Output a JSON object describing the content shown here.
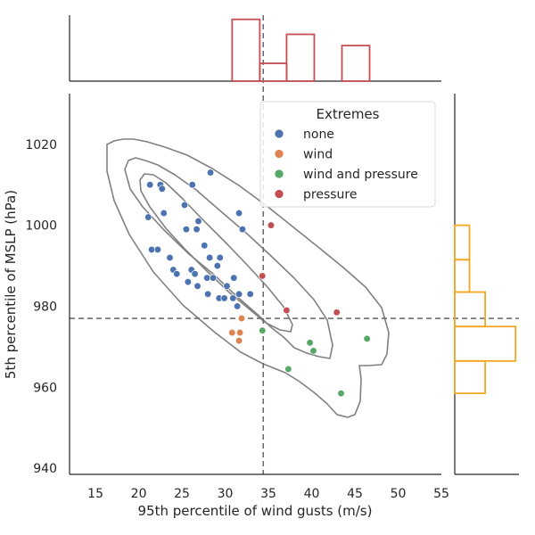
{
  "chart_data": {
    "type": "scatter",
    "xlabel": "95th percentile of wind gusts (m/s)",
    "ylabel": "5th percentile of MSLP (hPa)",
    "xlim": [
      12,
      55
    ],
    "ylim": [
      938.5,
      1032.5
    ],
    "xticks": [
      "15",
      "20",
      "25",
      "30",
      "35",
      "40",
      "45",
      "50",
      "55"
    ],
    "yticks": [
      "940",
      "960",
      "980",
      "1000",
      "1020"
    ],
    "threshold_x": 34.4,
    "threshold_y": 977,
    "grid": false,
    "legend": {
      "title": "Extremes",
      "placement": "top-right",
      "entries": [
        "none",
        "wind",
        "wind and pressure",
        "pressure"
      ]
    },
    "series": [
      {
        "name": "none",
        "color": "#4c72b0",
        "points": [
          [
            21.3,
            1010
          ],
          [
            22.5,
            1010
          ],
          [
            22.7,
            1009
          ],
          [
            26.2,
            1010
          ],
          [
            28.3,
            1013
          ],
          [
            25.3,
            1005
          ],
          [
            22.9,
            1003
          ],
          [
            21.1,
            1002
          ],
          [
            26.9,
            1001
          ],
          [
            25.5,
            999
          ],
          [
            26.7,
            999
          ],
          [
            31.6,
            1003
          ],
          [
            32.0,
            999
          ],
          [
            27.6,
            995
          ],
          [
            21.5,
            994
          ],
          [
            22.2,
            994
          ],
          [
            23.6,
            992
          ],
          [
            28.2,
            992
          ],
          [
            29.4,
            992
          ],
          [
            29.1,
            990
          ],
          [
            24.0,
            989
          ],
          [
            24.4,
            988
          ],
          [
            26.1,
            989
          ],
          [
            26.5,
            988
          ],
          [
            27.9,
            987
          ],
          [
            28.6,
            987
          ],
          [
            31.0,
            987
          ],
          [
            25.7,
            986
          ],
          [
            26.8,
            985
          ],
          [
            30.2,
            985
          ],
          [
            28.0,
            983
          ],
          [
            31.6,
            983
          ],
          [
            32.9,
            983
          ],
          [
            29.3,
            982
          ],
          [
            29.9,
            982
          ],
          [
            30.9,
            982
          ],
          [
            31.4,
            980
          ]
        ]
      },
      {
        "name": "wind",
        "color": "#dd8452",
        "points": [
          [
            31.9,
            977
          ],
          [
            30.8,
            973.5
          ],
          [
            31.7,
            973.5
          ],
          [
            31.6,
            971.5
          ]
        ]
      },
      {
        "name": "wind and pressure",
        "color": "#55a868",
        "points": [
          [
            34.3,
            974
          ],
          [
            46.4,
            972
          ],
          [
            39.8,
            971
          ],
          [
            40.2,
            969
          ],
          [
            37.3,
            964.5
          ],
          [
            43.4,
            958.5
          ]
        ]
      },
      {
        "name": "pressure",
        "color": "#c44e52",
        "points": [
          [
            35.3,
            1000
          ],
          [
            34.3,
            987.5
          ],
          [
            37.1,
            979
          ],
          [
            42.9,
            978.5
          ]
        ]
      }
    ],
    "marginal_x": {
      "type": "histogram",
      "color": "#c44e52",
      "bins": [
        [
          30.8,
          34.0,
          3.3
        ],
        [
          34.0,
          37.1,
          0.95
        ],
        [
          37.1,
          40.3,
          2.5
        ],
        [
          43.5,
          46.7,
          1.9
        ]
      ]
    },
    "marginal_y": {
      "type": "histogram",
      "color": "#f5a623",
      "bins": [
        [
          958.5,
          966.5,
          0.62
        ],
        [
          966.5,
          975,
          1.24
        ],
        [
          975,
          983.5,
          0.62
        ],
        [
          983.5,
          991.5,
          0.3
        ],
        [
          991.5,
          1000,
          0.3
        ]
      ]
    },
    "contours": {
      "color": "#808080",
      "levels": [
        [
          [
            120,
            162
          ],
          [
            128,
            158
          ],
          [
            138,
            156
          ],
          [
            150,
            156
          ],
          [
            165,
            159
          ],
          [
            185,
            165
          ],
          [
            210,
            174
          ],
          [
            238,
            189
          ],
          [
            268,
            208
          ],
          [
            298,
            230
          ],
          [
            328,
            254
          ],
          [
            358,
            278
          ],
          [
            385,
            300
          ],
          [
            410,
            322
          ],
          [
            428,
            345
          ],
          [
            436,
            373
          ],
          [
            434,
            397
          ],
          [
            428,
            409
          ],
          [
            412,
            410
          ],
          [
            403,
            410
          ],
          [
            405,
            425
          ],
          [
            404,
            450
          ],
          [
            398,
            465
          ],
          [
            390,
            468
          ],
          [
            378,
            465
          ],
          [
            366,
            452
          ],
          [
            352,
            440
          ],
          [
            336,
            428
          ],
          [
            320,
            418
          ],
          [
            295,
            408
          ],
          [
            270,
            395
          ],
          [
            240,
            372
          ],
          [
            205,
            342
          ],
          [
            172,
            305
          ],
          [
            145,
            263
          ],
          [
            128,
            225
          ],
          [
            120,
            192
          ],
          [
            120,
            162
          ]
        ],
        [
          [
            140,
            190
          ],
          [
            144,
            180
          ],
          [
            152,
            177
          ],
          [
            163,
            180
          ],
          [
            177,
            185
          ],
          [
            196,
            196
          ],
          [
            220,
            213
          ],
          [
            250,
            239
          ],
          [
            278,
            263
          ],
          [
            305,
            288
          ],
          [
            330,
            312
          ],
          [
            352,
            336
          ],
          [
            367,
            359
          ],
          [
            373,
            387
          ],
          [
            370,
            402
          ],
          [
            358,
            400
          ],
          [
            344,
            396
          ],
          [
            330,
            390
          ],
          [
            318,
            378
          ],
          [
            305,
            368
          ],
          [
            288,
            352
          ],
          [
            265,
            332
          ],
          [
            240,
            308
          ],
          [
            212,
            285
          ],
          [
            184,
            258
          ],
          [
            160,
            232
          ],
          [
            146,
            212
          ],
          [
            140,
            190
          ]
        ],
        [
          [
            157,
            202
          ],
          [
            162,
            195
          ],
          [
            172,
            196
          ],
          [
            186,
            205
          ],
          [
            205,
            223
          ],
          [
            228,
            247
          ],
          [
            254,
            273
          ],
          [
            278,
            298
          ],
          [
            300,
            322
          ],
          [
            318,
            344
          ],
          [
            328,
            364
          ],
          [
            326,
            372
          ],
          [
            314,
            370
          ],
          [
            298,
            362
          ],
          [
            280,
            347
          ],
          [
            256,
            327
          ],
          [
            232,
            304
          ],
          [
            208,
            280
          ],
          [
            186,
            256
          ],
          [
            168,
            232
          ],
          [
            158,
            214
          ],
          [
            157,
            202
          ]
        ]
      ]
    }
  }
}
